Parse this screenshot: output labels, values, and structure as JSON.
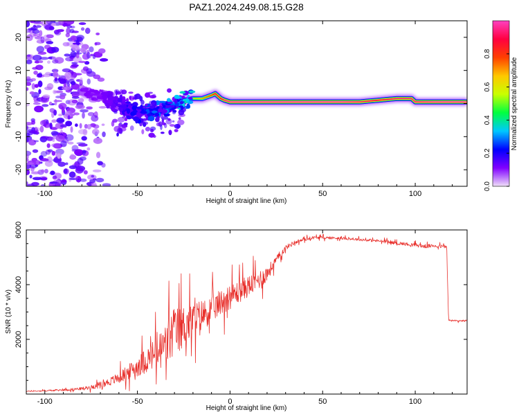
{
  "title": "PAZ1.2024.249.08.15.G28",
  "chart_data": [
    {
      "type": "heatmap",
      "title": "PAZ1.2024.249.08.15.G28",
      "xlabel": "Height of straight line (km)",
      "ylabel": "Frequency (Hz)",
      "xlim": [
        -110,
        128
      ],
      "ylim": [
        -25,
        25
      ],
      "xticks": [
        -100,
        -50,
        0,
        50,
        100
      ],
      "yticks": [
        -20,
        -10,
        0,
        10,
        20
      ],
      "colorbar": {
        "label": "Normalized spectral amplitude",
        "range": [
          0,
          1
        ],
        "ticks": [
          0.0,
          0.2,
          0.4,
          0.6,
          0.8
        ],
        "colormap": [
          "#f0e0f8",
          "#8000ff",
          "#0000ff",
          "#00c8ff",
          "#00ff40",
          "#c8ff00",
          "#ffc800",
          "#ff4000",
          "#ff0040",
          "#ff40c0"
        ]
      },
      "ridge": {
        "x": [
          -80,
          -70,
          -60,
          -50,
          -45,
          -40,
          -35,
          -30,
          -25,
          -20,
          -15,
          -10,
          -8,
          -5,
          -3,
          0,
          10,
          20,
          40,
          60,
          70,
          80,
          90,
          98,
          100,
          110,
          120,
          128
        ],
        "y": [
          3,
          2.5,
          0,
          -3,
          -2.5,
          -2,
          -1.5,
          0,
          1,
          1.5,
          1.5,
          2.5,
          3,
          1.5,
          1,
          0.5,
          0.5,
          0.5,
          0.5,
          0.5,
          0.5,
          1,
          1.5,
          1.5,
          0.5,
          0.5,
          0.5,
          0.5
        ],
        "amplitude": [
          0.15,
          0.15,
          0.2,
          0.25,
          0.3,
          0.3,
          0.35,
          0.4,
          0.5,
          0.6,
          0.7,
          0.8,
          0.9,
          0.9,
          0.95,
          1.0,
          1.0,
          1.0,
          1.0,
          1.0,
          0.95,
          0.9,
          0.95,
          0.95,
          0.95,
          1.0,
          1.0,
          1.0
        ]
      },
      "scatter_region": {
        "x": [
          -110,
          -65
        ],
        "y": [
          -25,
          25
        ],
        "amplitude": 0.12
      }
    },
    {
      "type": "line",
      "xlabel": "Height of straight line (km)",
      "ylabel": "SNR (10 * v/v)",
      "xlim": [
        -110,
        128
      ],
      "ylim": [
        0,
        6000
      ],
      "xticks": [
        -100,
        -50,
        0,
        50,
        100
      ],
      "yticks": [
        2000,
        4000,
        6000
      ],
      "series": [
        {
          "color": "#e8302c",
          "x": [
            -110,
            -100,
            -90,
            -80,
            -75,
            -70,
            -65,
            -60,
            -55,
            -50,
            -45,
            -40,
            -35,
            -33,
            -30,
            -27,
            -25,
            -22,
            -20,
            -15,
            -10,
            -5,
            0,
            5,
            10,
            15,
            20,
            25,
            30,
            35,
            40,
            45,
            50,
            60,
            70,
            80,
            90,
            100,
            105,
            110,
            117,
            118,
            120,
            128
          ],
          "y": [
            100,
            120,
            150,
            200,
            250,
            350,
            450,
            600,
            800,
            1000,
            1250,
            1500,
            1750,
            2000,
            2250,
            2400,
            2500,
            2600,
            2700,
            2900,
            3100,
            3350,
            3550,
            3750,
            3950,
            4150,
            4400,
            4900,
            5350,
            5550,
            5650,
            5720,
            5720,
            5700,
            5650,
            5600,
            5520,
            5450,
            5400,
            5420,
            5380,
            2700,
            2680,
            2680
          ],
          "noise": [
            30,
            40,
            60,
            90,
            120,
            180,
            250,
            350,
            450,
            600,
            800,
            1000,
            1400,
            1600,
            1500,
            1400,
            1300,
            1200,
            1100,
            950,
            850,
            800,
            750,
            700,
            650,
            600,
            500,
            250,
            150,
            120,
            100,
            90,
            80,
            80,
            80,
            90,
            100,
            110,
            120,
            100,
            100,
            60,
            60,
            60
          ]
        }
      ]
    }
  ]
}
